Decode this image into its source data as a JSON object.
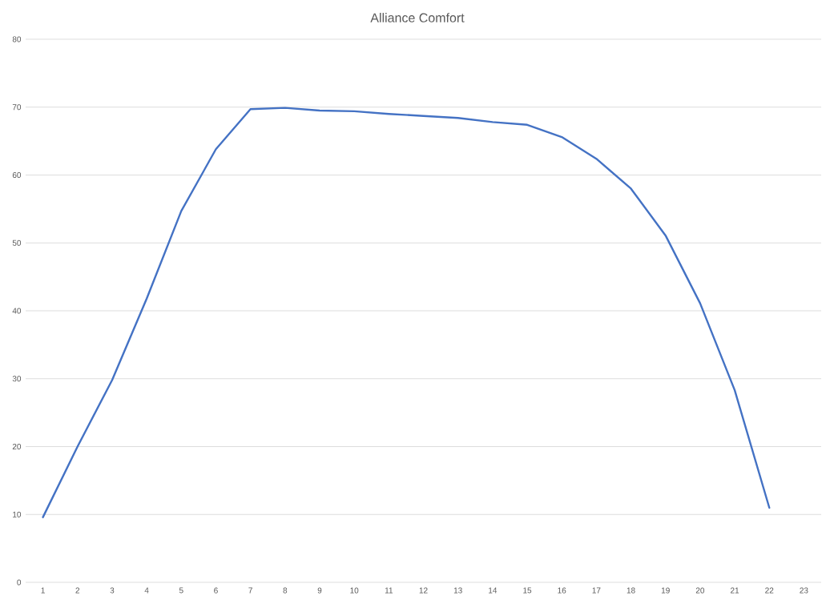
{
  "chart_data": {
    "type": "line",
    "title": "Alliance Comfort",
    "categories": [
      "1",
      "2",
      "3",
      "4",
      "5",
      "6",
      "7",
      "8",
      "9",
      "10",
      "11",
      "12",
      "13",
      "14",
      "15",
      "16",
      "17",
      "18",
      "19",
      "20",
      "21",
      "22",
      "23"
    ],
    "values": [
      9.6,
      20.0,
      29.8,
      41.8,
      54.7,
      63.8,
      69.7,
      69.9,
      69.5,
      69.4,
      69.0,
      68.7,
      68.4,
      67.8,
      67.4,
      65.6,
      62.4,
      58.0,
      51.1,
      41.1,
      28.3,
      11.0,
      null
    ],
    "color": "#4472c4",
    "ylim": [
      0,
      80
    ],
    "yticks": [
      0,
      10,
      20,
      30,
      40,
      50,
      60,
      70,
      80
    ],
    "grid": "y",
    "marker": "none",
    "line_style": "solid"
  }
}
